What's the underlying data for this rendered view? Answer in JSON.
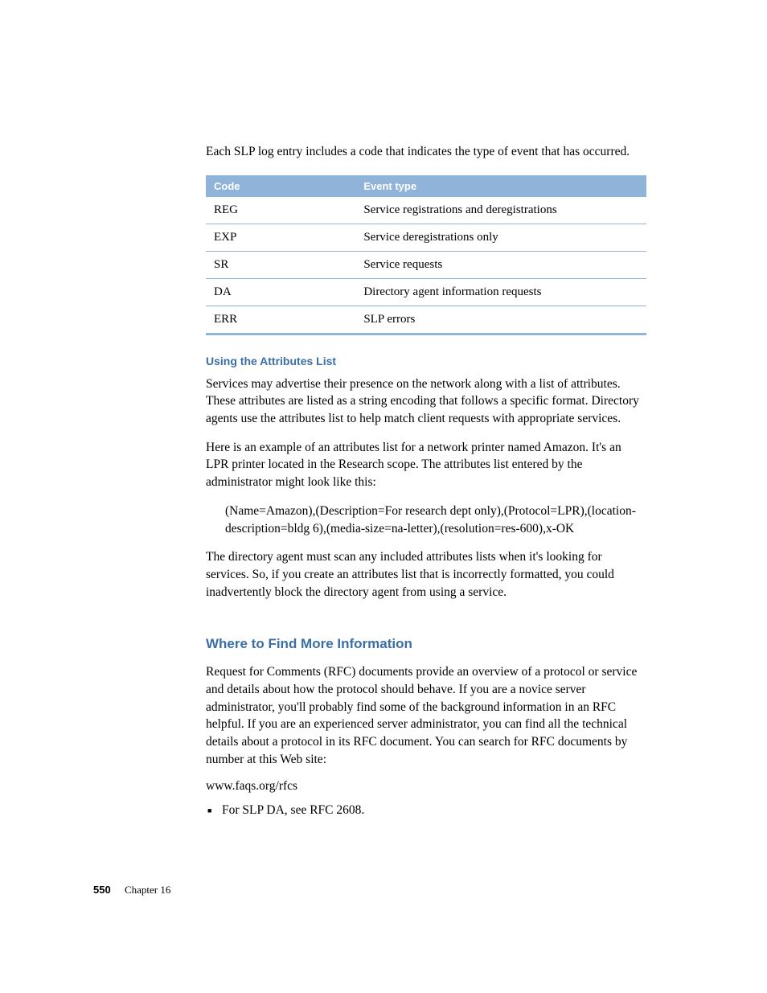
{
  "intro": "Each SLP log entry includes a code that indicates the type of event that has occurred.",
  "table": {
    "header_bg": "#8fb3d9",
    "header_fg": "#ffffff",
    "border_color": "#8fb3d9",
    "columns": [
      "Code",
      "Event type"
    ],
    "rows": [
      [
        "REG",
        "Service registrations and deregistrations"
      ],
      [
        "EXP",
        "Service deregistrations only"
      ],
      [
        "SR",
        "Service requests"
      ],
      [
        "DA",
        "Directory agent information requests"
      ],
      [
        "ERR",
        "SLP errors"
      ]
    ]
  },
  "sub1": {
    "heading": "Using the Attributes List",
    "p1": "Services may advertise their presence on the network along with a list of attributes. These attributes are listed as a string encoding that follows a specific format. Directory agents use the attributes list to help match client requests with appropriate services.",
    "p2": "Here is an example of an attributes list for a network printer named Amazon. It's an LPR printer located in the Research scope. The attributes list entered by the administrator might look like this:",
    "example": "(Name=Amazon),(Description=For research dept only),(Protocol=LPR),(location-description=bldg 6),(media-size=na-letter),(resolution=res-600),x-OK",
    "p3": "The directory agent must scan any included attributes lists when it's looking for services. So, if you create an attributes list that is incorrectly formatted, you could inadvertently block the directory agent from using a service."
  },
  "section2": {
    "heading": "Where to Find More Information",
    "p1": "Request for Comments (RFC) documents provide an overview of a protocol or service and details about how the protocol should behave. If you are a novice server administrator, you'll probably find some of the background information in an RFC helpful. If you are an experienced server administrator, you can find all the technical details about a protocol in its RFC document. You can search for RFC documents by number at this Web site:",
    "url": "www.faqs.org/rfcs",
    "bullet1": "For SLP DA, see RFC 2608."
  },
  "footer": {
    "page": "550",
    "chapter": "Chapter  16"
  },
  "colors": {
    "heading_blue": "#3b6ea5",
    "body_text": "#000000",
    "background": "#ffffff"
  }
}
